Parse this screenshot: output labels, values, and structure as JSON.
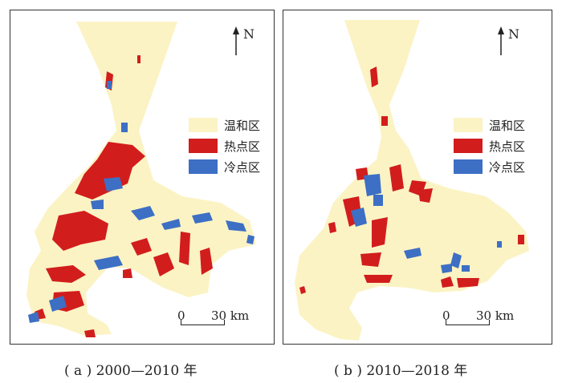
{
  "colors": {
    "mild": "#fbf3c4",
    "hot": "#d21d1d",
    "cold": "#3d6fc4",
    "frame": "#333333"
  },
  "panels": [
    {
      "north_label": "N",
      "legend": [
        {
          "label": "温和区",
          "color_key": "mild"
        },
        {
          "label": "热点区",
          "color_key": "hot"
        },
        {
          "label": "冷点区",
          "color_key": "cold"
        }
      ],
      "scale_zero": "0",
      "scale_distance": "30 km",
      "caption": "( a ) 2000—2010 年"
    },
    {
      "north_label": "N",
      "legend": [
        {
          "label": "温和区",
          "color_key": "mild"
        },
        {
          "label": "热点区",
          "color_key": "hot"
        },
        {
          "label": "冷点区",
          "color_key": "cold"
        }
      ],
      "scale_zero": "0",
      "scale_distance": "30 km",
      "caption": "( b ) 2010—2018 年"
    }
  ]
}
